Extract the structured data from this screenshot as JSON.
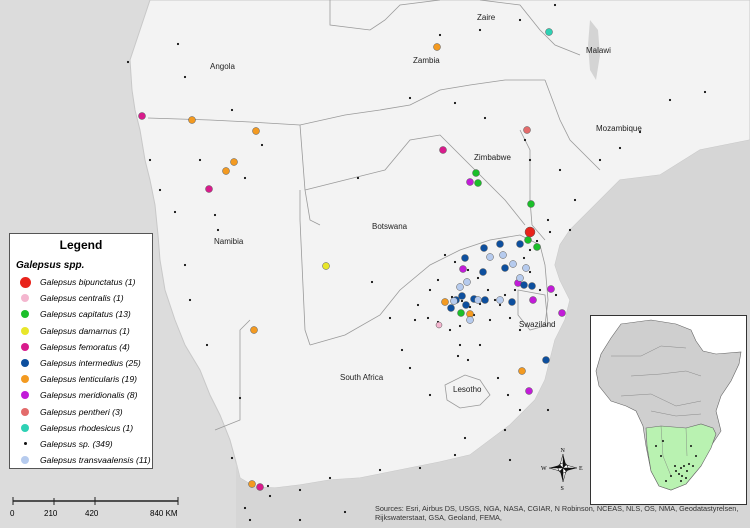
{
  "map": {
    "country_labels": [
      {
        "id": "zaire",
        "text": "Zaire"
      },
      {
        "id": "zambia",
        "text": "Zambia"
      },
      {
        "id": "malawi",
        "text": "Malawi"
      },
      {
        "id": "angola",
        "text": "Angola"
      },
      {
        "id": "mozambique",
        "text": "Mozambique"
      },
      {
        "id": "zimbabwe",
        "text": "Zimbabwe"
      },
      {
        "id": "botswana",
        "text": "Botswana"
      },
      {
        "id": "namibia",
        "text": "Namibia"
      },
      {
        "id": "swaziland",
        "text": "Swaziland"
      },
      {
        "id": "south-africa",
        "text": "South Africa"
      },
      {
        "id": "lesotho",
        "text": "Lesotho"
      }
    ],
    "colors": {
      "land": "#f2f2f2",
      "background": "#dedede",
      "border": "#999999",
      "inset_africa": "#cccccc",
      "inset_highlight": "#b9f2b1"
    }
  },
  "legend": {
    "title": "Legend",
    "subtitle": "Galepsus spp.",
    "items": [
      {
        "label": "Galepsus  bipunctatus (1)",
        "color": "#e8231b",
        "size": 11
      },
      {
        "label": "Galepsus  centralis (1)",
        "color": "#f4b6cf",
        "size": 8
      },
      {
        "label": "Galepsus  capitatus (13)",
        "color": "#1bbf2a",
        "size": 8
      },
      {
        "label": "Galepsus  damarnus (1)",
        "color": "#e8e62a",
        "size": 8
      },
      {
        "label": "Galepsus  femoratus (4)",
        "color": "#d81b8c",
        "size": 8
      },
      {
        "label": "Galepsus  intermedius (25)",
        "color": "#0d4f9e",
        "size": 8
      },
      {
        "label": "Galepsus  lenticularis (19)",
        "color": "#f39a21",
        "size": 8
      },
      {
        "label": "Galepsus  meridionalis (8)",
        "color": "#c21bd8",
        "size": 8
      },
      {
        "label": "Galepsus  pentheri (3)",
        "color": "#e36b6b",
        "size": 8
      },
      {
        "label": "Galepsus  rhodesicus (1)",
        "color": "#2ed1b4",
        "size": 8
      },
      {
        "label": "Galepsus  sp. (349)",
        "color": "#111111",
        "size": 3
      },
      {
        "label": "Galepsus  transvaalensis (11)",
        "color": "#b6cbee",
        "size": 8
      }
    ]
  },
  "scale": {
    "ticks": [
      "0",
      "210",
      "420",
      "840 KM"
    ]
  },
  "compass": {
    "n": "N",
    "s": "S",
    "e": "E",
    "w": "W"
  },
  "sources": "Sources: Esri, Airbus DS, USGS, NGA, NASA, CGIAR, N Robinson, NCEAS, NLS, OS, NMA, Geodatastyrelsen, Rijkswaterstaat, GSA, Geoland, FEMA,"
}
